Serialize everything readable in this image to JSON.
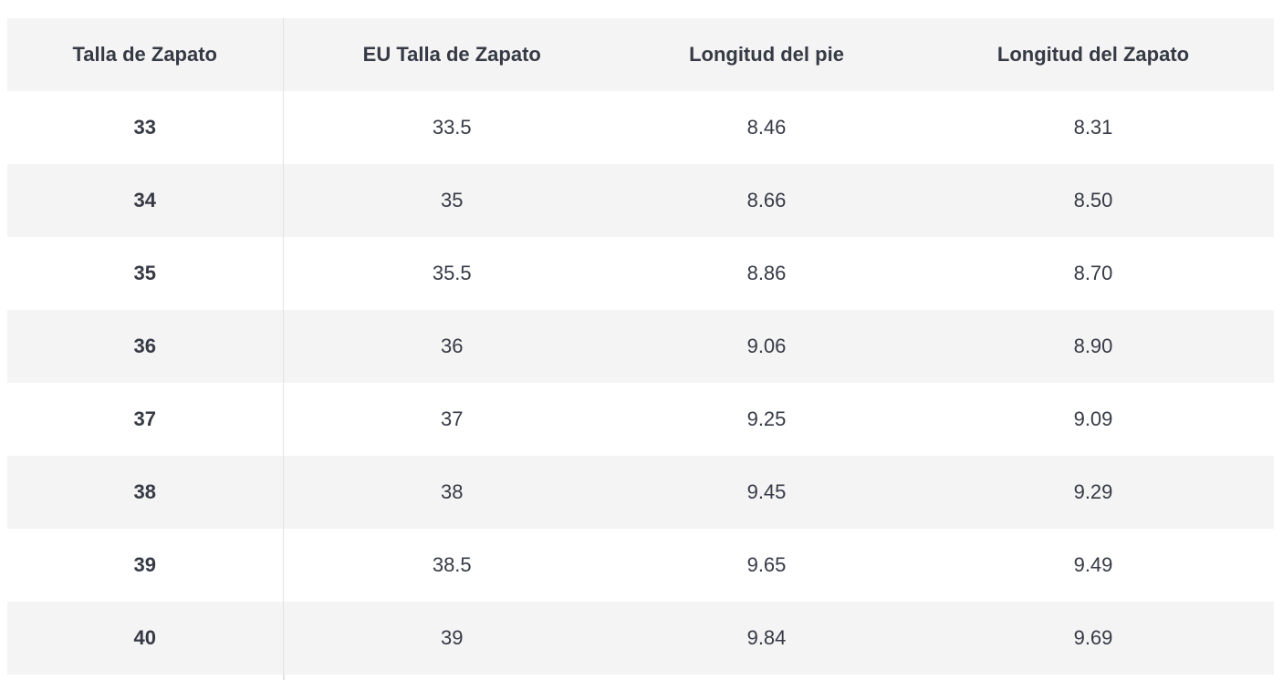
{
  "table": {
    "headers": [
      "Talla de Zapato",
      "EU Talla de Zapato",
      "Longitud del pie",
      "Longitud del Zapato"
    ],
    "rows": [
      [
        "33",
        "33.5",
        "8.46",
        "8.31"
      ],
      [
        "34",
        "35",
        "8.66",
        "8.50"
      ],
      [
        "35",
        "35.5",
        "8.86",
        "8.70"
      ],
      [
        "36",
        "36",
        "9.06",
        "8.90"
      ],
      [
        "37",
        "37",
        "9.25",
        "9.09"
      ],
      [
        "38",
        "38",
        "9.45",
        "9.29"
      ],
      [
        "39",
        "38.5",
        "9.65",
        "9.49"
      ],
      [
        "40",
        "39",
        "9.84",
        "9.69"
      ]
    ]
  },
  "colors": {
    "text": "#363a45",
    "stripe": "#f4f4f4",
    "divider": "#e2e2e2"
  }
}
